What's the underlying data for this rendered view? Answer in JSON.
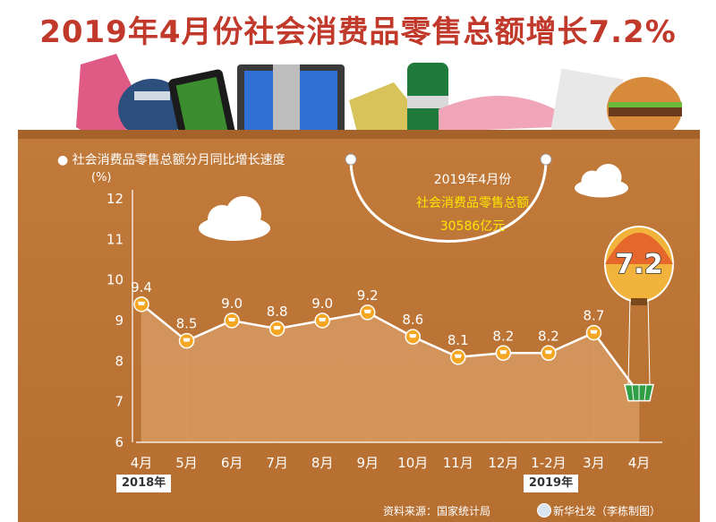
{
  "title": "2019年4月份社会消费品零售总额增长7.2%",
  "chart_data": {
    "type": "line",
    "subtitle": "社会消费品零售总额分月同比增长速度",
    "ylabel": "(%)",
    "ylim": [
      6,
      12
    ],
    "yticks": [
      6,
      7,
      8,
      9,
      10,
      11,
      12
    ],
    "categories": [
      "4月",
      "5月",
      "6月",
      "7月",
      "8月",
      "9月",
      "10月",
      "11月",
      "12月",
      "1-2月",
      "3月",
      "4月"
    ],
    "values": [
      9.4,
      8.5,
      9.0,
      8.8,
      9.0,
      9.2,
      8.6,
      8.1,
      8.2,
      8.2,
      8.7,
      7.2
    ],
    "value_labels": [
      "9.4",
      "8.5",
      "9.0",
      "8.8",
      "9.0",
      "9.2",
      "8.6",
      "8.1",
      "8.2",
      "8.2",
      "8.7",
      "7.2"
    ],
    "year_badges": [
      {
        "label": "2018年",
        "category_index": 0
      },
      {
        "label": "2019年",
        "category_index": 9
      }
    ],
    "colors": {
      "background": "#b8733a",
      "area": "#d79a62",
      "line": "#ffffff",
      "marker": "#f5a623",
      "title": "#c0392b",
      "highlight": "#ffe600"
    }
  },
  "callout": {
    "line1": "2019年4月份",
    "line2": "社会消费品零售总额",
    "line3": "30586亿元"
  },
  "footer": {
    "source": "资料来源：国家统计局",
    "credit": "新华社发（李栋制图）"
  },
  "icons": [
    "cart-icon",
    "basket-icon",
    "hot-air-balloon-icon",
    "cloud-icon",
    "shopping-bag-icon",
    "xinhua-logo-icon"
  ]
}
